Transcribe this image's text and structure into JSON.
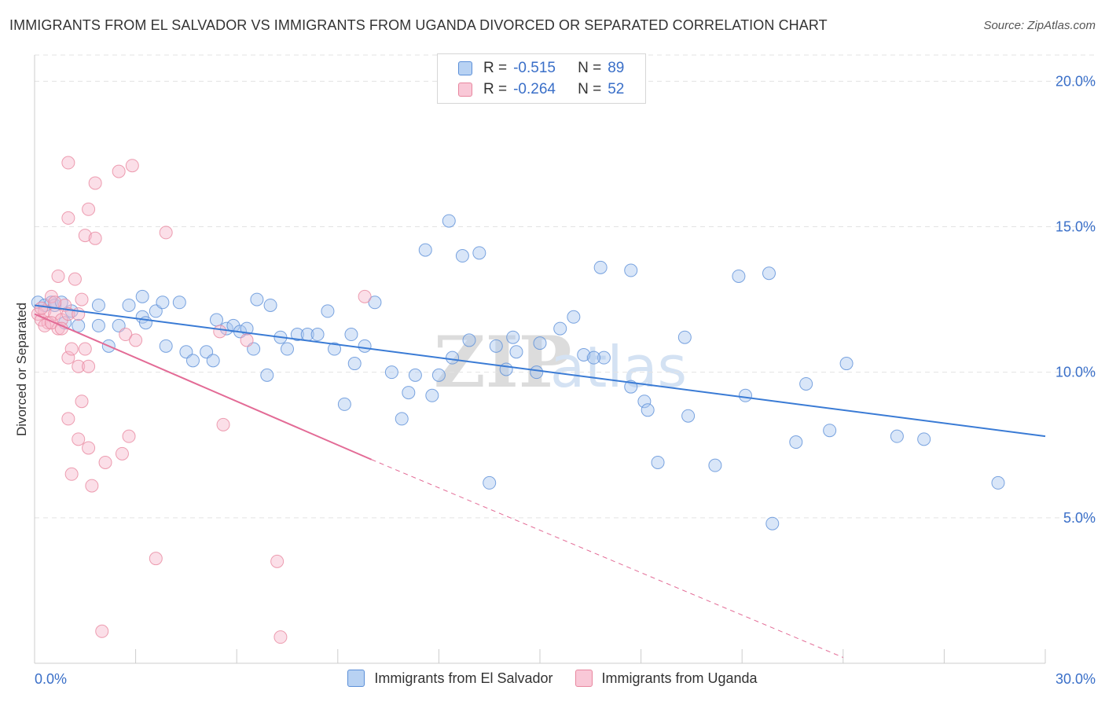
{
  "title": "IMMIGRANTS FROM EL SALVADOR VS IMMIGRANTS FROM UGANDA DIVORCED OR SEPARATED CORRELATION CHART",
  "source": "Source: ZipAtlas.com",
  "watermark": {
    "zip": "ZIP",
    "atlas": "atlas"
  },
  "legend": {
    "rows": [
      {
        "r_label": "R =",
        "r_value": "-0.515",
        "n_label": "N =",
        "n_value": "89"
      },
      {
        "r_label": "R =",
        "r_value": "-0.264",
        "n_label": "N =",
        "n_value": "52"
      }
    ]
  },
  "colors": {
    "blue": "#3a7bd5",
    "blue_fill": "#aac8f0",
    "blue_stroke": "#5b8fd8",
    "pink": "#e36b96",
    "pink_fill": "#f6b8cc",
    "pink_stroke": "#e8879f",
    "grid": "#e3e3e3",
    "tick_label": "#3a6fc8"
  },
  "chart_data": {
    "type": "scatter",
    "ylabel": "Divorced or Separated",
    "xlim": [
      0,
      30
    ],
    "ylim": [
      0,
      20.9
    ],
    "x_ticks": [
      "0.0%",
      "30.0%"
    ],
    "y_ticks": [
      {
        "value": 5,
        "label": "5.0%"
      },
      {
        "value": 10,
        "label": "10.0%"
      },
      {
        "value": 15,
        "label": "15.0%"
      },
      {
        "value": 20,
        "label": "20.0%"
      }
    ],
    "grid": true,
    "legend_position": "bottom",
    "series": [
      {
        "name": "Immigrants from El Salvador",
        "color": "blue",
        "trend": {
          "x0": 0,
          "y0": 12.3,
          "x1": 30,
          "y1": 7.8,
          "dashed_from": null
        },
        "points": [
          [
            0.1,
            12.4
          ],
          [
            0.3,
            12.3
          ],
          [
            0.5,
            12.4
          ],
          [
            0.6,
            12.3
          ],
          [
            0.8,
            12.4
          ],
          [
            1.1,
            12.1
          ],
          [
            0.9,
            11.7
          ],
          [
            1.3,
            11.6
          ],
          [
            1.9,
            12.3
          ],
          [
            2.8,
            12.3
          ],
          [
            3.2,
            12.6
          ],
          [
            3.6,
            12.1
          ],
          [
            3.8,
            12.4
          ],
          [
            4.3,
            12.4
          ],
          [
            1.9,
            11.6
          ],
          [
            2.2,
            10.9
          ],
          [
            2.5,
            11.6
          ],
          [
            3.2,
            11.9
          ],
          [
            3.3,
            11.7
          ],
          [
            3.9,
            10.9
          ],
          [
            4.5,
            10.7
          ],
          [
            4.7,
            10.4
          ],
          [
            5.1,
            10.7
          ],
          [
            5.3,
            10.4
          ],
          [
            5.4,
            11.8
          ],
          [
            5.7,
            11.5
          ],
          [
            5.9,
            11.6
          ],
          [
            6.1,
            11.4
          ],
          [
            6.6,
            12.5
          ],
          [
            6.3,
            11.5
          ],
          [
            6.5,
            10.8
          ],
          [
            6.9,
            9.9
          ],
          [
            7.0,
            12.3
          ],
          [
            7.3,
            11.2
          ],
          [
            7.5,
            10.8
          ],
          [
            7.8,
            11.3
          ],
          [
            8.1,
            11.3
          ],
          [
            8.4,
            11.3
          ],
          [
            8.7,
            12.1
          ],
          [
            8.9,
            10.8
          ],
          [
            9.2,
            8.9
          ],
          [
            9.4,
            11.3
          ],
          [
            9.5,
            10.3
          ],
          [
            9.8,
            10.9
          ],
          [
            10.1,
            12.4
          ],
          [
            10.6,
            10.0
          ],
          [
            10.9,
            8.4
          ],
          [
            11.1,
            9.3
          ],
          [
            11.3,
            9.9
          ],
          [
            11.6,
            14.2
          ],
          [
            11.8,
            9.2
          ],
          [
            12.0,
            9.9
          ],
          [
            12.4,
            10.5
          ],
          [
            12.3,
            15.2
          ],
          [
            12.7,
            14.0
          ],
          [
            13.2,
            14.1
          ],
          [
            12.9,
            11.1
          ],
          [
            13.5,
            6.2
          ],
          [
            13.7,
            10.9
          ],
          [
            14.0,
            10.1
          ],
          [
            14.2,
            11.2
          ],
          [
            14.3,
            10.7
          ],
          [
            14.9,
            10.0
          ],
          [
            15.0,
            11.0
          ],
          [
            15.6,
            11.5
          ],
          [
            16.0,
            11.9
          ],
          [
            16.3,
            10.6
          ],
          [
            16.8,
            13.6
          ],
          [
            16.9,
            10.5
          ],
          [
            17.7,
            9.5
          ],
          [
            17.7,
            13.5
          ],
          [
            18.1,
            9.0
          ],
          [
            18.2,
            8.7
          ],
          [
            18.5,
            6.9
          ],
          [
            19.3,
            11.2
          ],
          [
            19.4,
            8.5
          ],
          [
            20.2,
            6.8
          ],
          [
            20.9,
            13.3
          ],
          [
            21.1,
            9.2
          ],
          [
            21.8,
            13.4
          ],
          [
            21.9,
            4.8
          ],
          [
            22.6,
            7.6
          ],
          [
            22.9,
            9.6
          ],
          [
            23.6,
            8.0
          ],
          [
            24.1,
            10.3
          ],
          [
            25.6,
            7.8
          ],
          [
            26.4,
            7.7
          ],
          [
            28.6,
            6.2
          ],
          [
            16.6,
            10.5
          ]
        ]
      },
      {
        "name": "Immigrants from Uganda",
        "color": "pink",
        "trend": {
          "x0": 0,
          "y0": 12.0,
          "x1": 10,
          "y1": 7.0,
          "dash_x1": 24,
          "dash_y1": 0.2
        },
        "points": [
          [
            0.1,
            12.0
          ],
          [
            0.2,
            11.8
          ],
          [
            0.3,
            12.1
          ],
          [
            0.4,
            11.7
          ],
          [
            0.5,
            12.6
          ],
          [
            0.6,
            12.0
          ],
          [
            0.7,
            11.5
          ],
          [
            0.8,
            11.8
          ],
          [
            0.9,
            12.3
          ],
          [
            1.0,
            12.0
          ],
          [
            0.3,
            11.6
          ],
          [
            0.5,
            11.7
          ],
          [
            0.2,
            12.2
          ],
          [
            0.6,
            12.4
          ],
          [
            0.8,
            11.5
          ],
          [
            1.3,
            12.0
          ],
          [
            0.7,
            13.3
          ],
          [
            1.2,
            13.2
          ],
          [
            1.4,
            12.5
          ],
          [
            1.0,
            10.5
          ],
          [
            1.1,
            10.8
          ],
          [
            1.3,
            10.2
          ],
          [
            1.5,
            10.8
          ],
          [
            1.6,
            10.2
          ],
          [
            1.4,
            9.0
          ],
          [
            1.0,
            8.4
          ],
          [
            1.3,
            7.7
          ],
          [
            1.6,
            7.4
          ],
          [
            1.1,
            6.5
          ],
          [
            1.7,
            6.1
          ],
          [
            2.1,
            6.9
          ],
          [
            2.6,
            7.2
          ],
          [
            2.8,
            7.8
          ],
          [
            1.0,
            17.2
          ],
          [
            1.8,
            16.5
          ],
          [
            2.5,
            16.9
          ],
          [
            2.9,
            17.1
          ],
          [
            1.6,
            15.6
          ],
          [
            1.0,
            15.3
          ],
          [
            1.5,
            14.7
          ],
          [
            1.8,
            14.6
          ],
          [
            3.9,
            14.8
          ],
          [
            2.7,
            11.3
          ],
          [
            3.0,
            11.1
          ],
          [
            5.5,
            11.4
          ],
          [
            5.6,
            8.2
          ],
          [
            6.3,
            11.1
          ],
          [
            7.2,
            3.5
          ],
          [
            3.6,
            3.6
          ],
          [
            2.0,
            1.1
          ],
          [
            7.3,
            0.9
          ],
          [
            9.8,
            12.6
          ]
        ]
      }
    ]
  },
  "bottom_legend": [
    {
      "label": "Immigrants from El Salvador"
    },
    {
      "label": "Immigrants from Uganda"
    }
  ]
}
